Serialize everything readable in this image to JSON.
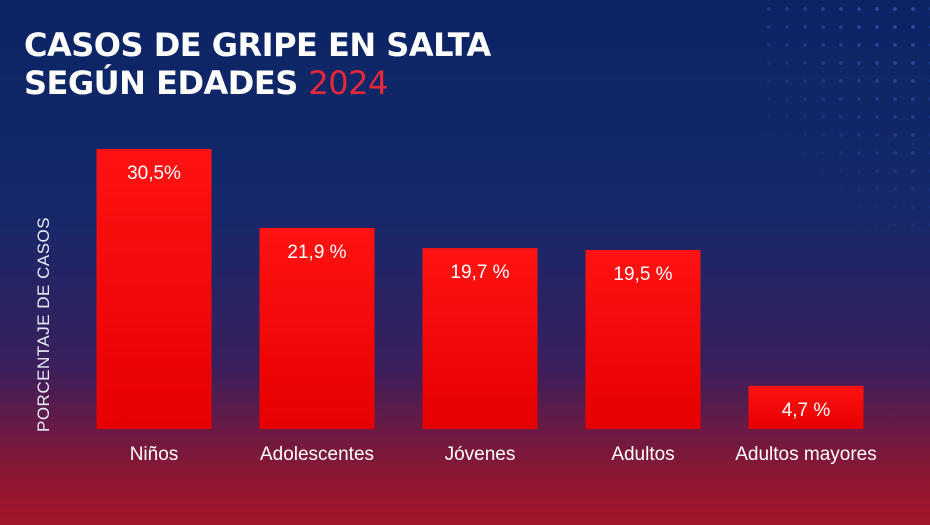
{
  "title": {
    "line1": "CASOS DE GRIPE EN SALTA",
    "line2": "SEGÚN EDADES",
    "year": "2024"
  },
  "chart_data": {
    "type": "bar",
    "title": "CASOS DE GRIPE EN SALTA SEGÚN EDADES 2024",
    "xlabel": "",
    "ylabel": "PORCENTAJE DE CASOS",
    "categories": [
      "Niños",
      "Adolescentes",
      "Jóvenes",
      "Adultos",
      "Adultos mayores"
    ],
    "values": [
      30.5,
      21.9,
      19.7,
      19.5,
      4.7
    ],
    "value_labels": [
      "30,5%",
      "21,9 %",
      "19,7 %",
      "19,5 %",
      "4,7 %"
    ],
    "ylim": [
      0,
      30.5
    ],
    "grid": false,
    "colors": {
      "bar": "#f00a0a",
      "bar_dark": "#d60000",
      "year": "#e8283a"
    }
  }
}
